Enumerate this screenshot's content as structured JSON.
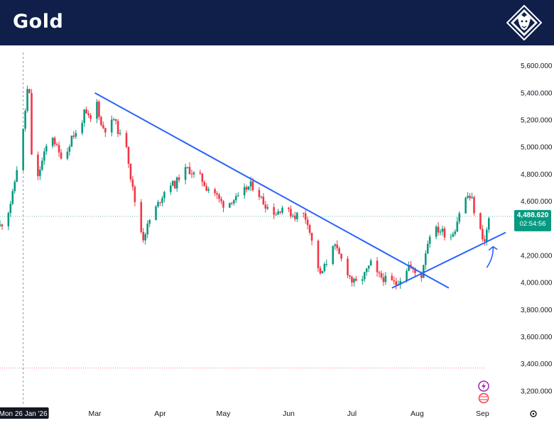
{
  "header": {
    "title": "Gold"
  },
  "chart_data": {
    "type": "candlestick",
    "y_range": [
      3100,
      5750
    ],
    "x_range": [
      "2026-01-15",
      "2026-09-12"
    ],
    "y_ticks": [
      {
        "value": 5600,
        "label": "5,600.000"
      },
      {
        "value": 5400,
        "label": "5,400.000"
      },
      {
        "value": 5200,
        "label": "5,200.000"
      },
      {
        "value": 5000,
        "label": "5,000.000"
      },
      {
        "value": 4800,
        "label": "4,800.000"
      },
      {
        "value": 4600,
        "label": "4,600.000"
      },
      {
        "value": 4200,
        "label": "4,200.000"
      },
      {
        "value": 4000,
        "label": "4,000.000"
      },
      {
        "value": 3800,
        "label": "3,800.000"
      },
      {
        "value": 3600,
        "label": "3,600.000"
      },
      {
        "value": 3400,
        "label": "3,400.000"
      },
      {
        "value": 3200,
        "label": "3,200.000"
      }
    ],
    "x_ticks": [
      {
        "date": "2026-03-01",
        "label": "Mar"
      },
      {
        "date": "2026-04-01",
        "label": "Apr"
      },
      {
        "date": "2026-05-01",
        "label": "May"
      },
      {
        "date": "2026-06-01",
        "label": "Jun"
      },
      {
        "date": "2026-07-01",
        "label": "Jul"
      },
      {
        "date": "2026-08-01",
        "label": "Aug"
      },
      {
        "date": "2026-09-01",
        "label": "Sep"
      }
    ],
    "crosshair": {
      "date": "2026-01-26",
      "label": "Mon 26 Jan '26"
    },
    "last_price": {
      "value": 4488.62,
      "label": "4,488.620",
      "countdown": "02:54:56"
    },
    "low_reference_line": 3370,
    "trendlines": [
      {
        "name": "resistance",
        "from": {
          "date": "2026-03-01",
          "price": 5400
        },
        "to": {
          "date": "2026-08-16",
          "price": 3960
        }
      },
      {
        "name": "support",
        "from": {
          "date": "2026-07-20",
          "price": 3960
        },
        "to": {
          "date": "2026-09-12",
          "price": 4370
        }
      }
    ],
    "annotation_arrow": {
      "from": {
        "date": "2026-09-03",
        "price": 4110
      },
      "to": {
        "date": "2026-09-06",
        "price": 4265
      }
    },
    "colors": {
      "up": "#089981",
      "down": "#f23645",
      "trend": "#2962ff",
      "price_badge": "#089981",
      "crosshair_label": "#131722"
    },
    "price_path": [
      [
        "2026-01-15",
        4420
      ],
      [
        "2026-01-18",
        4470
      ],
      [
        "2026-01-21",
        4650
      ],
      [
        "2026-01-24",
        4940
      ],
      [
        "2026-01-26",
        5120
      ],
      [
        "2026-01-28",
        5420
      ],
      [
        "2026-01-29",
        5380
      ],
      [
        "2026-01-30",
        4950
      ],
      [
        "2026-02-01",
        4700
      ],
      [
        "2026-02-03",
        4840
      ],
      [
        "2026-02-06",
        5000
      ],
      [
        "2026-02-09",
        5080
      ],
      [
        "2026-02-12",
        4950
      ],
      [
        "2026-02-15",
        4920
      ],
      [
        "2026-02-18",
        5080
      ],
      [
        "2026-02-21",
        5100
      ],
      [
        "2026-02-24",
        5250
      ],
      [
        "2026-02-27",
        5200
      ],
      [
        "2026-03-02",
        5330
      ],
      [
        "2026-03-04",
        5160
      ],
      [
        "2026-03-07",
        5120
      ],
      [
        "2026-03-10",
        5210
      ],
      [
        "2026-03-13",
        5080
      ],
      [
        "2026-03-16",
        5020
      ],
      [
        "2026-03-18",
        4780
      ],
      [
        "2026-03-20",
        4600
      ],
      [
        "2026-03-22",
        4430
      ],
      [
        "2026-03-24",
        4330
      ],
      [
        "2026-03-27",
        4460
      ],
      [
        "2026-03-30",
        4550
      ],
      [
        "2026-04-02",
        4640
      ],
      [
        "2026-04-05",
        4740
      ],
      [
        "2026-04-08",
        4720
      ],
      [
        "2026-04-11",
        4810
      ],
      [
        "2026-04-14",
        4840
      ],
      [
        "2026-04-17",
        4800
      ],
      [
        "2026-04-20",
        4780
      ],
      [
        "2026-04-23",
        4700
      ],
      [
        "2026-04-26",
        4690
      ],
      [
        "2026-04-29",
        4610
      ],
      [
        "2026-05-02",
        4560
      ],
      [
        "2026-05-05",
        4610
      ],
      [
        "2026-05-08",
        4620
      ],
      [
        "2026-05-11",
        4680
      ],
      [
        "2026-05-14",
        4720
      ],
      [
        "2026-05-17",
        4680
      ],
      [
        "2026-05-20",
        4590
      ],
      [
        "2026-05-23",
        4540
      ],
      [
        "2026-05-26",
        4510
      ],
      [
        "2026-05-29",
        4560
      ],
      [
        "2026-06-01",
        4520
      ],
      [
        "2026-06-04",
        4490
      ],
      [
        "2026-06-07",
        4530
      ],
      [
        "2026-06-10",
        4450
      ],
      [
        "2026-06-12",
        4300
      ],
      [
        "2026-06-14",
        4180
      ],
      [
        "2026-06-16",
        4050
      ],
      [
        "2026-06-19",
        4150
      ],
      [
        "2026-06-22",
        4290
      ],
      [
        "2026-06-25",
        4200
      ],
      [
        "2026-06-28",
        4110
      ],
      [
        "2026-07-01",
        4010
      ],
      [
        "2026-07-04",
        3990
      ],
      [
        "2026-07-07",
        4060
      ],
      [
        "2026-07-10",
        4140
      ],
      [
        "2026-07-13",
        4060
      ],
      [
        "2026-07-16",
        4030
      ],
      [
        "2026-07-19",
        4010
      ],
      [
        "2026-07-22",
        3990
      ],
      [
        "2026-07-25",
        4050
      ],
      [
        "2026-07-28",
        4130
      ],
      [
        "2026-07-31",
        4070
      ],
      [
        "2026-08-03",
        4050
      ],
      [
        "2026-08-05",
        4230
      ],
      [
        "2026-08-07",
        4360
      ],
      [
        "2026-08-10",
        4390
      ],
      [
        "2026-08-13",
        4380
      ],
      [
        "2026-08-16",
        4320
      ],
      [
        "2026-08-19",
        4400
      ],
      [
        "2026-08-22",
        4580
      ],
      [
        "2026-08-25",
        4640
      ],
      [
        "2026-08-27",
        4610
      ],
      [
        "2026-08-29",
        4450
      ],
      [
        "2026-08-31",
        4380
      ],
      [
        "2026-09-02",
        4300
      ],
      [
        "2026-09-04",
        4470
      ],
      [
        "2026-09-05",
        4488.62
      ]
    ]
  }
}
